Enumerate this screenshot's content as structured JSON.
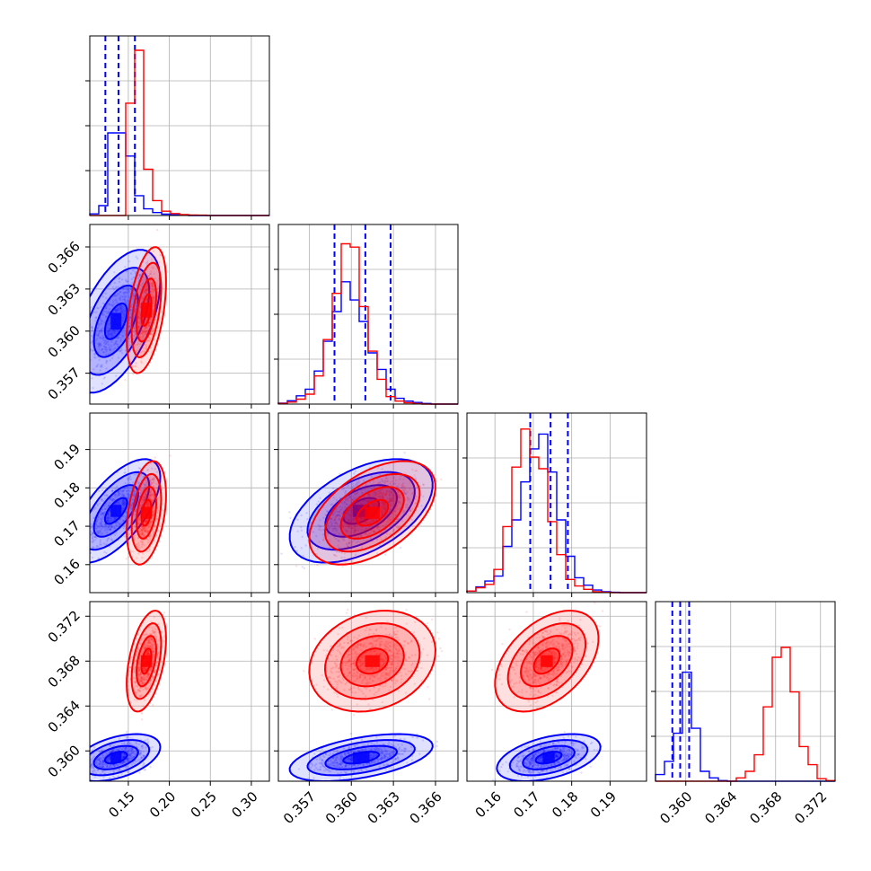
{
  "figure": {
    "type": "corner-plot"
  },
  "colors": {
    "series_a": "#0000ff",
    "series_b": "#ff0000",
    "grid": "#b0b0b0",
    "axes": "#000000"
  },
  "chart_data": {
    "type": "corner",
    "parameters": [
      {
        "ticks": [
          0.15,
          0.2,
          0.25,
          0.3
        ],
        "tick_labels": [
          "0.15",
          "0.20",
          "0.25",
          "0.30"
        ],
        "range": [
          0.103,
          0.322
        ]
      },
      {
        "ticks": [
          0.357,
          0.36,
          0.363,
          0.366
        ],
        "tick_labels": [
          "0.357",
          "0.360",
          "0.363",
          "0.366"
        ],
        "range": [
          0.3548,
          0.3676
        ]
      },
      {
        "ticks": [
          0.16,
          0.17,
          0.18,
          0.19
        ],
        "tick_labels": [
          "0.16",
          "0.17",
          "0.18",
          "0.19"
        ],
        "range": [
          0.1527,
          0.1995
        ]
      },
      {
        "ticks": [
          0.36,
          0.364,
          0.368,
          0.372
        ],
        "tick_labels": [
          "0.360",
          "0.364",
          "0.368",
          "0.372"
        ],
        "range": [
          0.3573,
          0.3733
        ]
      }
    ],
    "series": [
      {
        "color": "#0000ff",
        "quantiles": [
          [
            0.122,
            0.138,
            0.158
          ],
          [
            0.3588,
            0.361,
            0.3628
          ],
          [
            0.1692,
            0.1745,
            0.179
          ],
          [
            0.3588,
            0.3595,
            0.3603
          ]
        ],
        "means": [
          0.135,
          0.3607,
          0.174,
          0.3594
        ],
        "sigmas": [
          0.018,
          0.0017,
          0.0045,
          0.0007
        ],
        "corr": [
          [
            1,
            0.55,
            0.65,
            0.45
          ],
          [
            0.55,
            1,
            0.5,
            0.5
          ],
          [
            0.65,
            0.5,
            1,
            0.45
          ],
          [
            0.45,
            0.5,
            0.45,
            1
          ]
        ],
        "hist1d": [
          [
            0.01,
            0.06,
            0.5,
            0.5,
            0.36,
            0.12,
            0.04,
            0.018,
            0.008,
            0.004,
            0.002,
            0,
            0,
            0,
            0,
            0,
            0,
            0,
            0,
            0
          ],
          [
            0.006,
            0.02,
            0.05,
            0.09,
            0.2,
            0.38,
            0.56,
            0.74,
            0.63,
            0.5,
            0.31,
            0.21,
            0.09,
            0.035,
            0.018,
            0.01,
            0.004,
            0,
            0,
            0
          ],
          [
            0.01,
            0.035,
            0.07,
            0.1,
            0.28,
            0.44,
            0.67,
            0.87,
            0.96,
            0.73,
            0.44,
            0.22,
            0.09,
            0.045,
            0.016,
            0.006,
            0.002,
            0,
            0,
            0
          ],
          [
            0.04,
            0.12,
            0.29,
            0.66,
            0.32,
            0.06,
            0.02,
            0.004,
            0,
            0,
            0,
            0,
            0,
            0,
            0,
            0,
            0,
            0,
            0,
            0
          ]
        ]
      },
      {
        "color": "#ff0000",
        "means": [
          0.172,
          0.3615,
          0.1735,
          0.368
        ],
        "sigmas": [
          0.008,
          0.0015,
          0.0045,
          0.0015
        ],
        "corr": [
          [
            1,
            0.45,
            0.35,
            0.45
          ],
          [
            0.45,
            1,
            0.5,
            0.2
          ],
          [
            0.35,
            0.5,
            1,
            0.45
          ],
          [
            0.45,
            0.2,
            0.45,
            1
          ]
        ],
        "hist1d": [
          [
            0,
            0,
            0,
            0,
            0.68,
            1.0,
            0.28,
            0.09,
            0.026,
            0.012,
            0.006,
            0.003,
            0.002,
            0,
            0,
            0,
            0,
            0,
            0,
            0
          ],
          [
            0.004,
            0.012,
            0.03,
            0.06,
            0.17,
            0.39,
            0.67,
            0.97,
            0.95,
            0.59,
            0.32,
            0.15,
            0.045,
            0.018,
            0.008,
            0.003,
            0,
            0,
            0,
            0
          ],
          [
            0.01,
            0.03,
            0.05,
            0.14,
            0.4,
            0.76,
            0.99,
            0.82,
            0.75,
            0.43,
            0.23,
            0.08,
            0.04,
            0.02,
            0.006,
            0.002,
            0,
            0,
            0,
            0
          ],
          [
            0,
            0,
            0,
            0,
            0,
            0,
            0,
            0,
            0,
            0.02,
            0.06,
            0.16,
            0.45,
            0.75,
            0.81,
            0.54,
            0.21,
            0.1,
            0.015,
            0.004
          ]
        ]
      }
    ],
    "grid": true,
    "contour_levels_sigma": [
      0.5,
      1.0,
      1.5,
      2.0
    ]
  }
}
